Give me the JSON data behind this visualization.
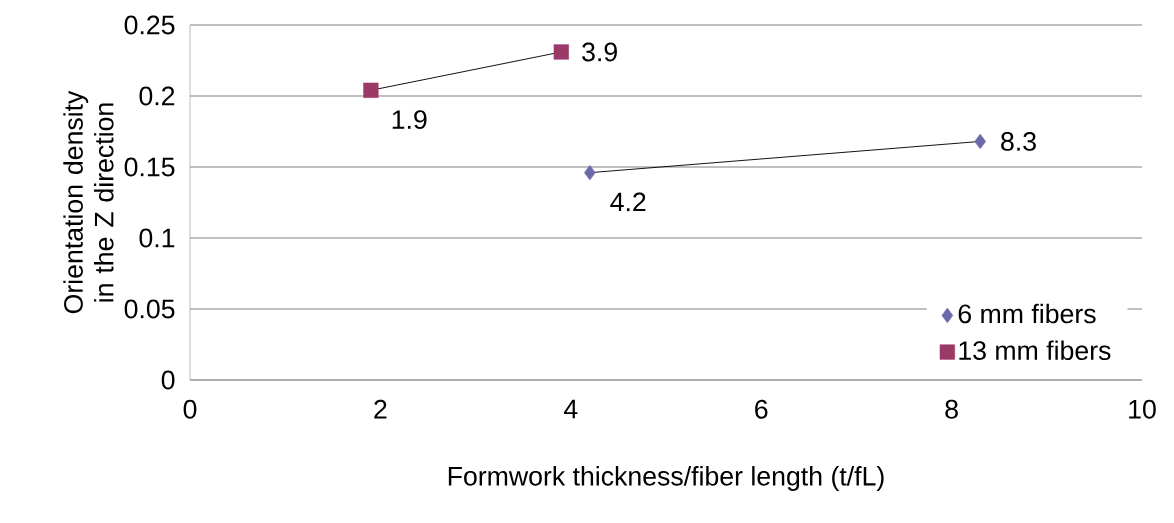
{
  "chart_data": {
    "type": "line",
    "xlabel": "Formwork thickness/fiber length (t/fL)",
    "ylabel": "Orientation density in the Z direction",
    "xlim": [
      0,
      10
    ],
    "xticks": [
      0,
      2,
      4,
      6,
      8,
      10
    ],
    "ylim": [
      0,
      0.25
    ],
    "yticks": [
      0,
      0.05,
      0.1,
      0.15,
      0.2,
      0.25
    ],
    "grid": "y",
    "legend": "bottom right",
    "series": [
      {
        "name": "6 mm fibers",
        "color": "#6b6aa8",
        "marker": "diamond",
        "x": [
          4.2,
          8.3
        ],
        "values": [
          0.146,
          0.168
        ]
      },
      {
        "name": "13 mm fibers",
        "color": "#9b3a67",
        "marker": "square",
        "x": [
          1.9,
          3.9
        ],
        "values": [
          0.204,
          0.231
        ]
      }
    ],
    "annotations": [
      {
        "text": "4.2",
        "x": 4.2,
        "y": 0.146
      },
      {
        "text": "8.3",
        "x": 8.3,
        "y": 0.168
      },
      {
        "text": "1.9",
        "x": 1.9,
        "y": 0.204
      },
      {
        "text": "3.9",
        "x": 3.9,
        "y": 0.231
      }
    ]
  }
}
